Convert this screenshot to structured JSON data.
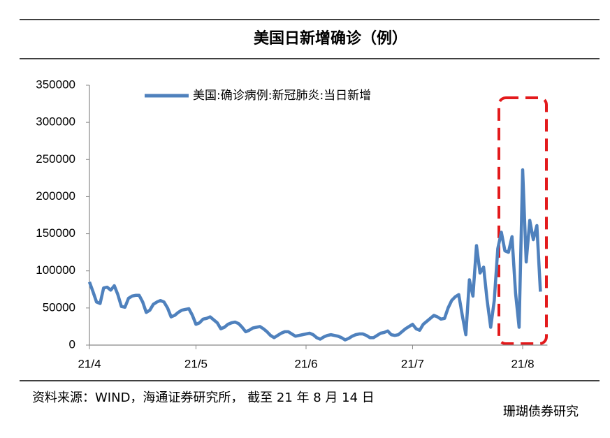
{
  "chart_data": {
    "type": "line",
    "title": "美国日新增确诊（例）",
    "categories": [
      "21/4",
      null,
      null,
      null,
      null,
      null,
      null,
      null,
      null,
      null,
      null,
      null,
      null,
      null,
      null,
      null,
      null,
      null,
      null,
      null,
      null,
      null,
      null,
      null,
      null,
      null,
      null,
      null,
      null,
      null,
      "21/5",
      null,
      null,
      null,
      null,
      null,
      null,
      null,
      null,
      null,
      null,
      null,
      null,
      null,
      null,
      null,
      null,
      null,
      null,
      null,
      null,
      null,
      null,
      null,
      null,
      null,
      null,
      null,
      null,
      null,
      null,
      "21/6",
      null,
      null,
      null,
      null,
      null,
      null,
      null,
      null,
      null,
      null,
      null,
      null,
      null,
      null,
      null,
      null,
      null,
      null,
      null,
      null,
      null,
      null,
      null,
      null,
      null,
      null,
      null,
      null,
      null,
      "21/7",
      null,
      null,
      null,
      null,
      null,
      null,
      null,
      null,
      null,
      null,
      null,
      null,
      null,
      null,
      null,
      null,
      null,
      null,
      null,
      null,
      null,
      null,
      null,
      null,
      null,
      null,
      null,
      null,
      null,
      null,
      "21/8",
      null,
      null,
      null,
      null,
      null
    ],
    "series": [
      {
        "name": "美国:确诊病例:新冠肺炎:当日新增",
        "color": "#4f81bd",
        "values": [
          85000,
          72000,
          58000,
          56000,
          77000,
          78000,
          74000,
          80000,
          68000,
          52000,
          51000,
          63000,
          66000,
          67000,
          67000,
          58000,
          44000,
          47000,
          55000,
          58000,
          60000,
          58000,
          50000,
          38000,
          40000,
          44000,
          47000,
          48000,
          49000,
          40000,
          28000,
          30000,
          35000,
          36000,
          38000,
          34000,
          30000,
          22000,
          24000,
          28000,
          30000,
          31000,
          29000,
          24000,
          18000,
          20000,
          23000,
          24000,
          25000,
          22000,
          18000,
          13000,
          10000,
          13000,
          16000,
          18000,
          18000,
          15000,
          12000,
          13000,
          14000,
          15000,
          16000,
          14000,
          10000,
          8000,
          11000,
          13000,
          14000,
          13000,
          12000,
          10000,
          7000,
          9000,
          12000,
          14000,
          15000,
          15000,
          13000,
          10000,
          10000,
          13000,
          16000,
          17000,
          19000,
          14000,
          13000,
          14000,
          18000,
          22000,
          25000,
          28000,
          22000,
          20000,
          28000,
          32000,
          36000,
          40000,
          38000,
          35000,
          36000,
          50000,
          60000,
          65000,
          68000,
          40000,
          14000,
          88000,
          66000,
          134000,
          97000,
          105000,
          60000,
          24000,
          60000,
          130000,
          152000,
          127000,
          125000,
          146000,
          70000,
          24000,
          236000,
          112000,
          168000,
          142000,
          161000,
          72000
        ]
      }
    ],
    "ylim": [
      0,
      350000
    ],
    "yticks": [
      0,
      50000,
      100000,
      150000,
      200000,
      250000,
      300000,
      350000
    ],
    "legend": "top"
  },
  "source": "资料来源：WIND，海通证券研究所， 截至 21 年 8 月 14 日",
  "watermark": "珊瑚债券研究"
}
